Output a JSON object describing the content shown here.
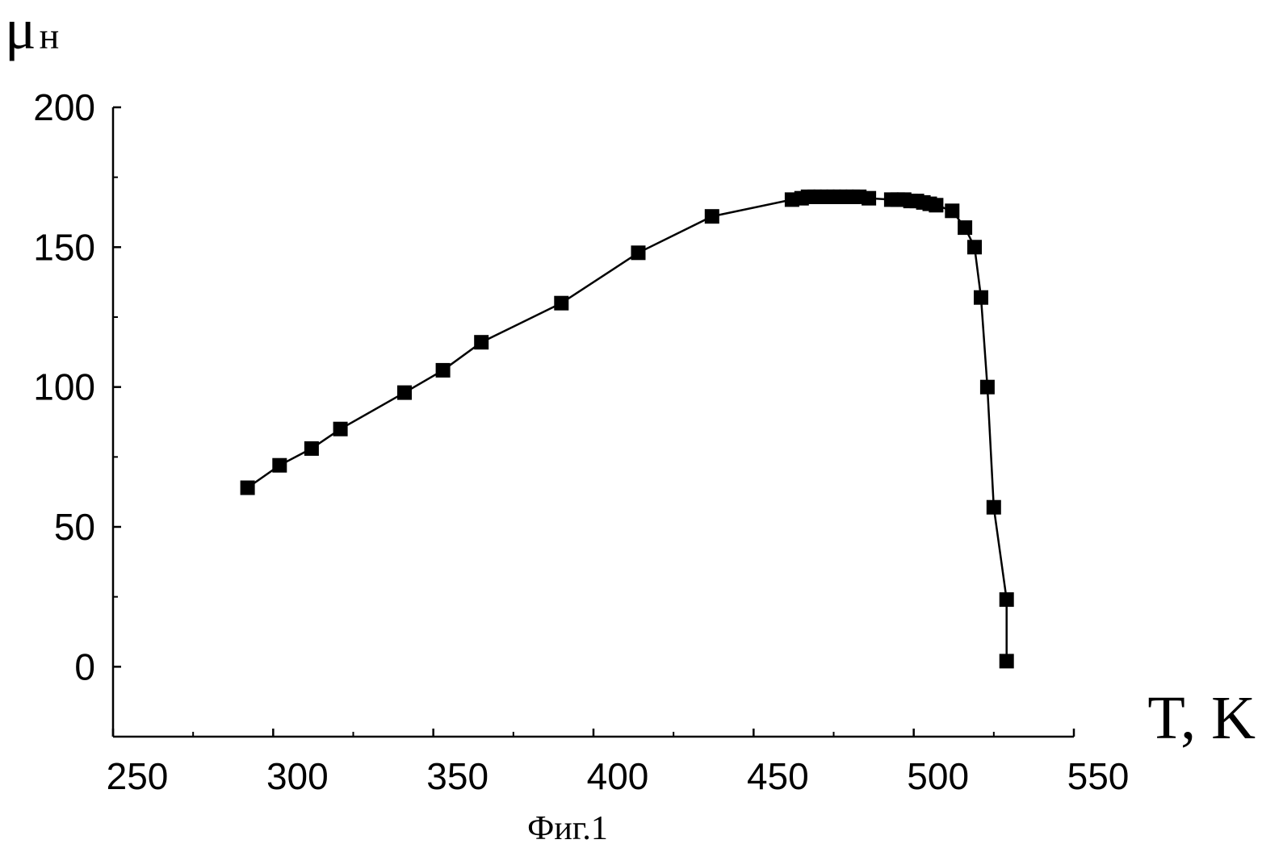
{
  "chart_data": {
    "type": "line",
    "title": "",
    "caption": "Фиг.1",
    "xlabel": "T, K",
    "ylabel_main": "μ",
    "ylabel_sub": "н",
    "xlim": [
      250,
      550
    ],
    "ylim": [
      -25,
      200
    ],
    "x_ticks": [
      250,
      300,
      350,
      400,
      450,
      500,
      550
    ],
    "y_ticks": [
      0,
      50,
      100,
      150,
      200
    ],
    "grid": false,
    "marker": "square",
    "series": [
      {
        "x": [
          292,
          302,
          312,
          321,
          341,
          353,
          365,
          390,
          414,
          437,
          462,
          465,
          467,
          469,
          471,
          473,
          475,
          477,
          479,
          481,
          483,
          486,
          493,
          495,
          497,
          499,
          501,
          503,
          505,
          507,
          512,
          516,
          519,
          521,
          523,
          525,
          529,
          529
        ],
        "y": [
          64,
          72,
          78,
          85,
          98,
          106,
          116,
          130,
          148,
          161,
          167,
          167.5,
          168,
          168,
          168,
          168,
          168,
          168,
          168,
          168,
          168,
          167.5,
          167,
          167,
          167,
          166.5,
          166.5,
          166,
          165.5,
          165,
          163,
          157,
          150,
          132,
          100,
          57,
          24,
          2
        ]
      }
    ]
  }
}
